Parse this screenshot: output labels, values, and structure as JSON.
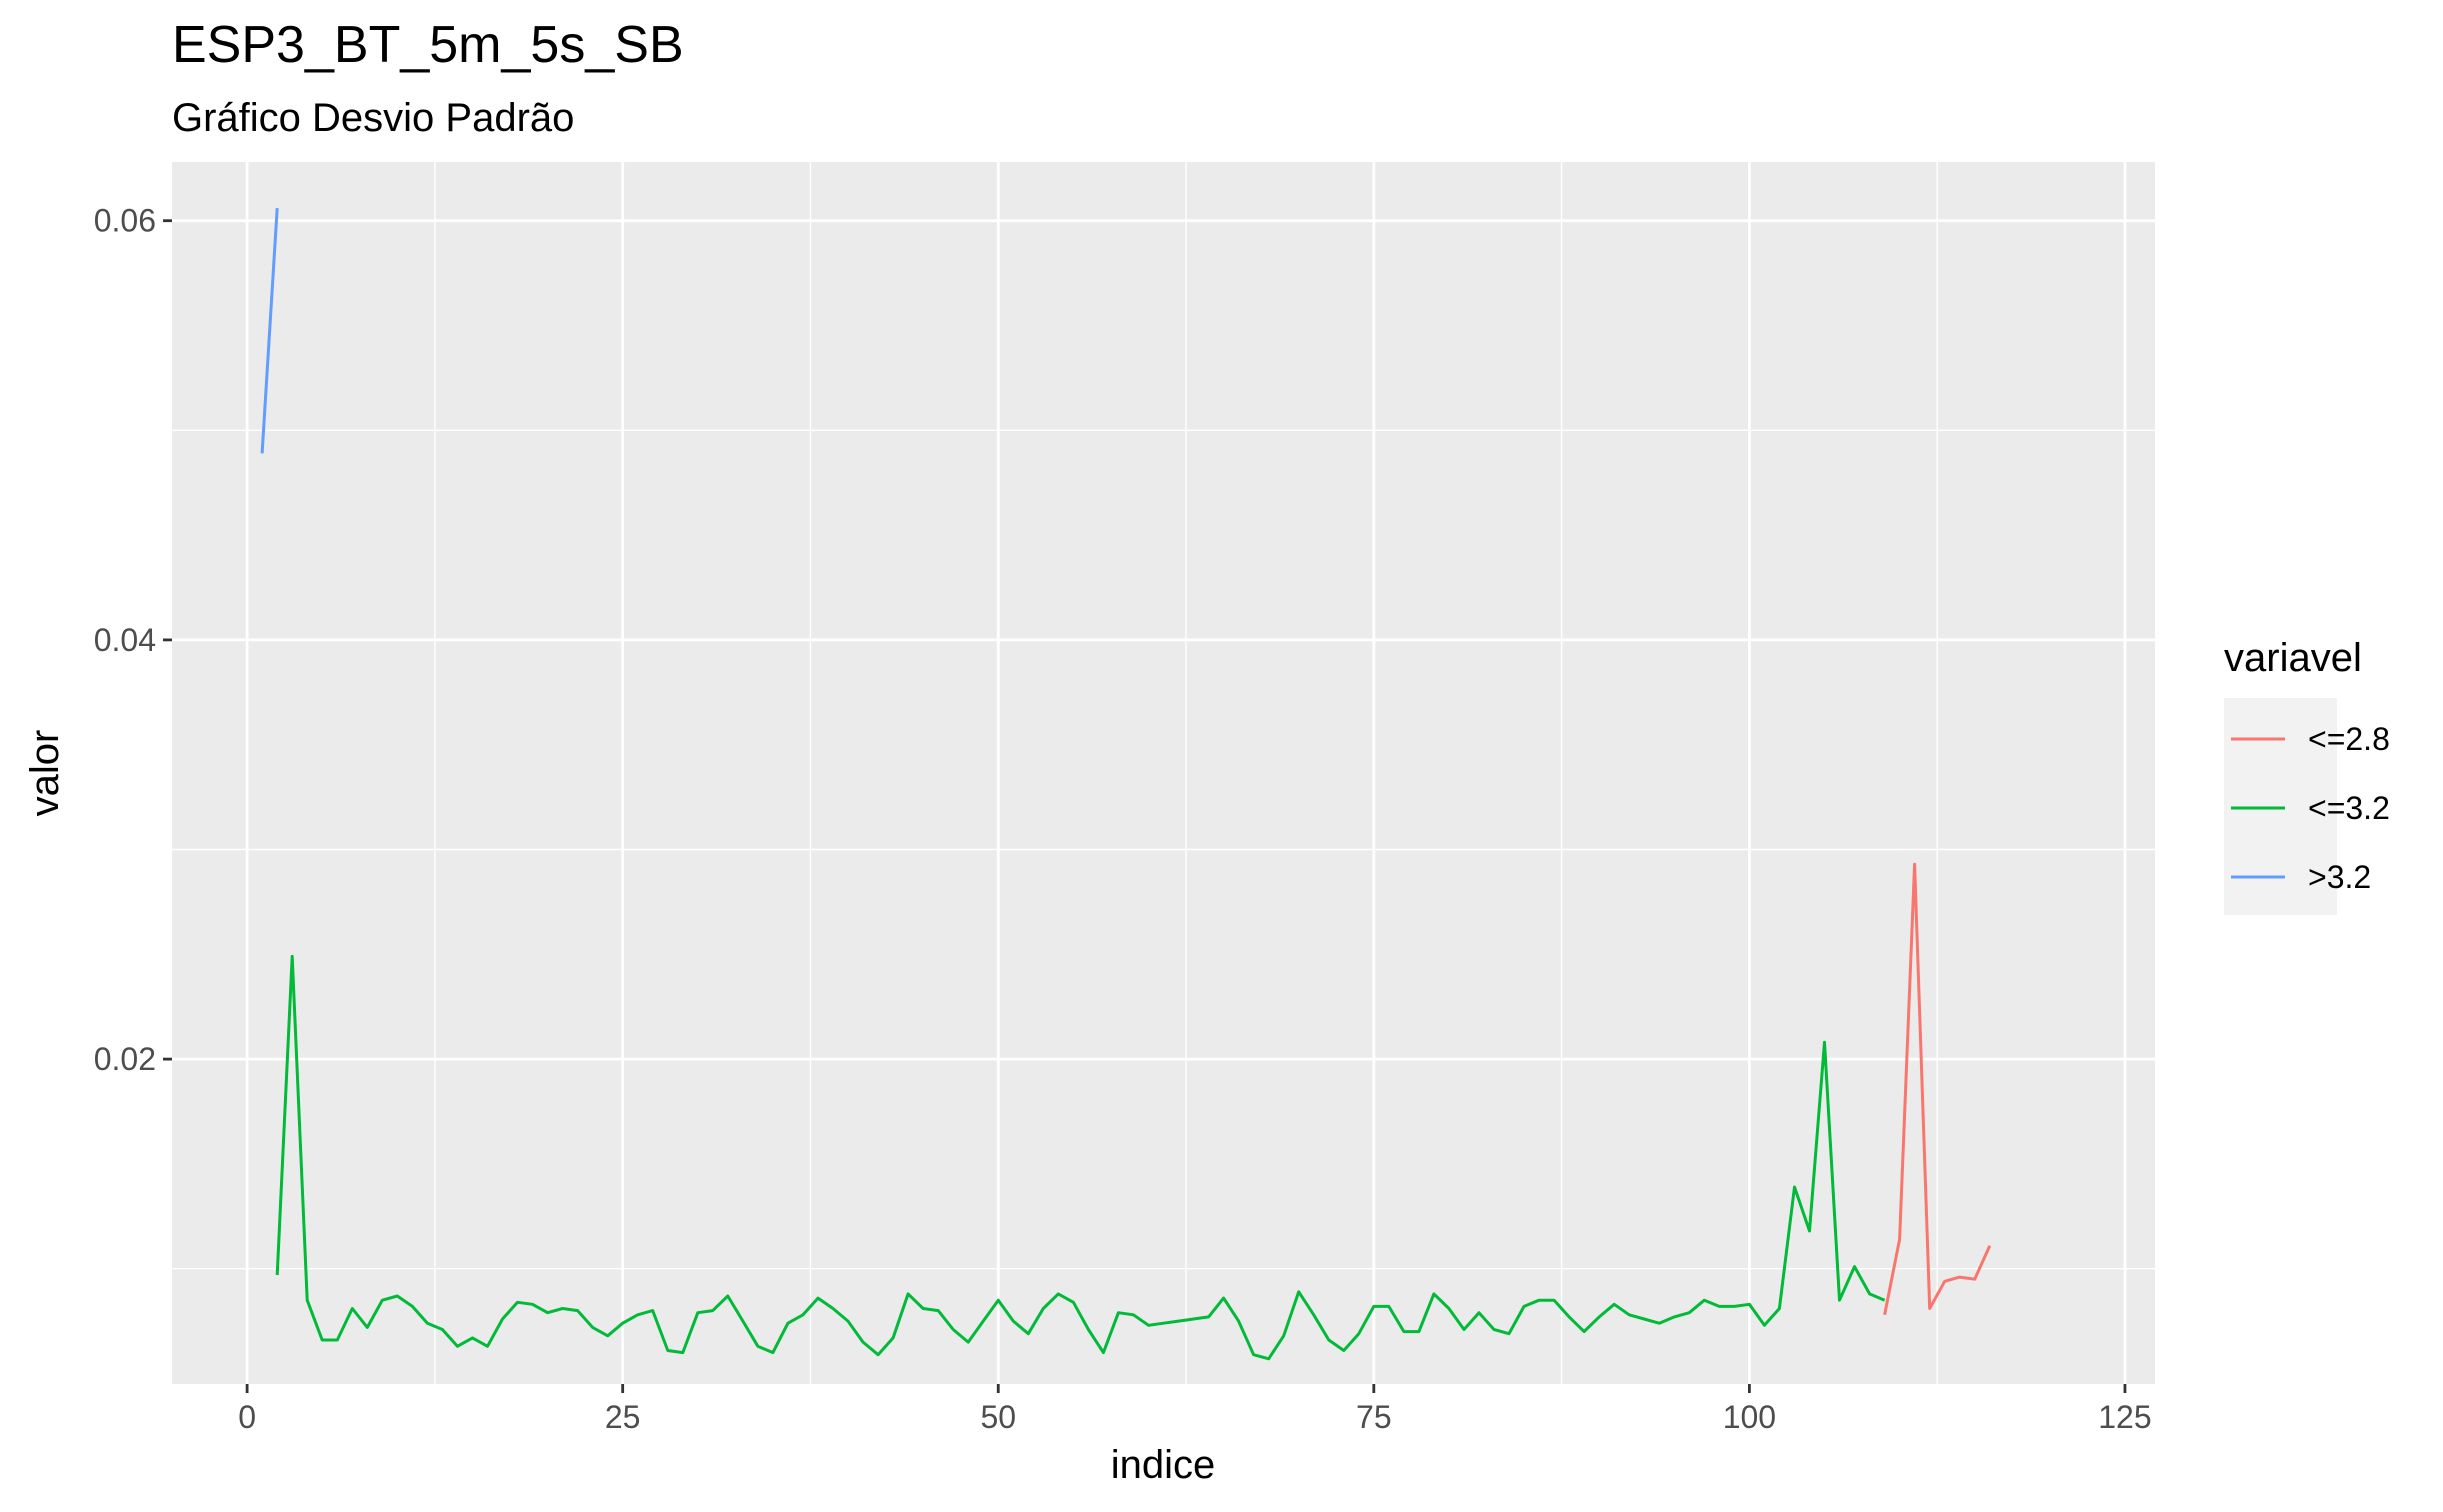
{
  "chart_data": {
    "type": "line",
    "title": "ESP3_BT_5m_5s_SB",
    "subtitle": "Gráfico Desvio Padrão",
    "xlabel": "indice",
    "ylabel": "valor",
    "xlim": [
      -5,
      127
    ],
    "ylim": [
      0.0045,
      0.0628
    ],
    "x_ticks": [
      0,
      25,
      50,
      75,
      100,
      125
    ],
    "x_tick_labels": [
      "0",
      "25",
      "50",
      "75",
      "100",
      "125"
    ],
    "y_ticks": [
      0.02,
      0.04,
      0.06
    ],
    "y_tick_labels": [
      "0.02",
      "0.04",
      "0.06"
    ],
    "grid": true,
    "legend": {
      "title": "variavel",
      "position": "right",
      "entries": [
        "<=2.8",
        "<=3.2",
        ">3.2"
      ]
    },
    "series": [
      {
        "name": "<=2.8",
        "color": "#F8766D",
        "x": [
          109,
          110,
          111,
          112,
          113,
          114,
          115,
          116
        ],
        "y": [
          0.0078,
          0.0114,
          0.0293,
          0.0081,
          0.0094,
          0.0096,
          0.0095,
          0.0111
        ]
      },
      {
        "name": "<=3.2",
        "color": "#00BA38",
        "x": [
          2,
          3,
          4,
          5,
          6,
          7,
          8,
          9,
          10,
          11,
          12,
          13,
          14,
          15,
          16,
          17,
          18,
          19,
          20,
          21,
          22,
          23,
          24,
          25,
          26,
          27,
          28,
          29,
          30,
          31,
          32,
          33,
          34,
          35,
          36,
          37,
          38,
          39,
          40,
          41,
          42,
          43,
          44,
          45,
          46,
          47,
          48,
          49,
          50,
          51,
          52,
          53,
          54,
          55,
          56,
          57,
          58,
          59,
          60,
          61,
          62,
          63,
          64,
          65,
          66,
          67,
          68,
          69,
          70,
          71,
          72,
          73,
          74,
          75,
          76,
          77,
          78,
          79,
          80,
          81,
          82,
          83,
          84,
          85,
          86,
          87,
          88,
          89,
          90,
          91,
          92,
          93,
          94,
          95,
          96,
          97,
          98,
          99,
          100,
          101,
          102,
          103,
          104,
          105,
          106,
          107,
          108,
          109
        ],
        "y": [
          0.0097,
          0.0249,
          0.0085,
          0.0066,
          0.0066,
          0.0081,
          0.0072,
          0.0085,
          0.0087,
          0.0082,
          0.0074,
          0.0071,
          0.0063,
          0.0067,
          0.0063,
          0.0076,
          0.0084,
          0.0083,
          0.0079,
          0.0081,
          0.008,
          0.0072,
          0.0068,
          0.0074,
          0.0078,
          0.008,
          0.0061,
          0.006,
          0.0079,
          0.008,
          0.0087,
          0.0075,
          0.0063,
          0.006,
          0.0074,
          0.0078,
          0.0086,
          0.0081,
          0.0075,
          0.0065,
          0.0059,
          0.0067,
          0.0088,
          0.0081,
          0.008,
          0.0071,
          0.0065,
          0.0075,
          0.0085,
          0.0075,
          0.0069,
          0.0081,
          0.0088,
          0.0084,
          0.0071,
          0.006,
          0.0079,
          0.0078,
          0.0073,
          0.0074,
          0.0075,
          0.0076,
          0.0077,
          0.0086,
          0.0075,
          0.0059,
          0.0057,
          0.0068,
          0.0089,
          0.0078,
          0.0066,
          0.0061,
          0.0069,
          0.0082,
          0.0082,
          0.007,
          0.007,
          0.0088,
          0.0081,
          0.0071,
          0.0079,
          0.0071,
          0.0069,
          0.0082,
          0.0085,
          0.0085,
          0.0077,
          0.007,
          0.0077,
          0.0083,
          0.0078,
          0.0076,
          0.0074,
          0.0077,
          0.0079,
          0.0085,
          0.0082,
          0.0082,
          0.0083,
          0.0073,
          0.0081,
          0.0139,
          0.0118,
          0.0208,
          0.0085,
          0.0101,
          0.0088,
          0.0085
        ]
      },
      {
        "name": ">3.2",
        "color": "#619CFF",
        "x": [
          1,
          2
        ],
        "y": [
          0.0489,
          0.0606
        ]
      }
    ]
  }
}
